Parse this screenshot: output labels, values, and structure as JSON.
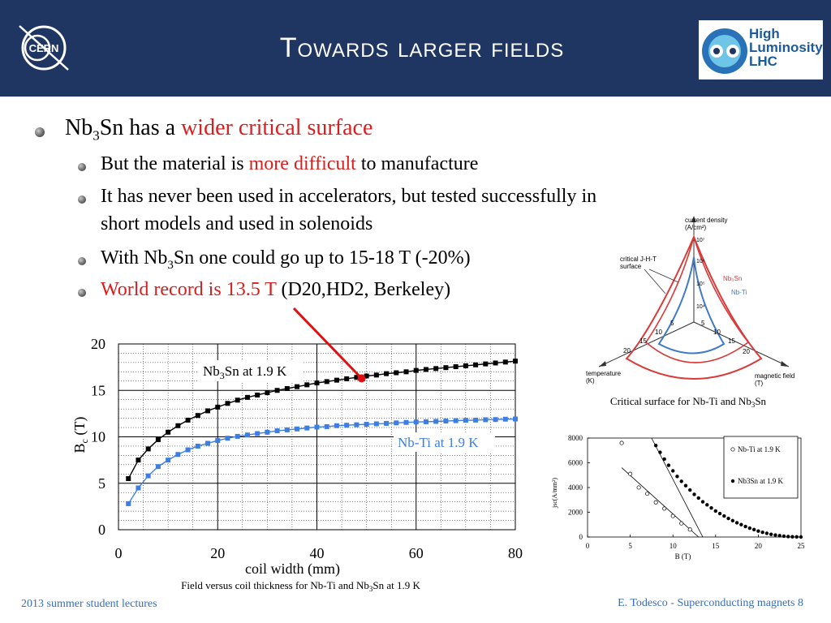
{
  "header": {
    "title": "Towards larger fields",
    "left_logo_text": "CERN",
    "right_logo_lines": [
      "High",
      "Luminosity",
      "LHC"
    ]
  },
  "colors": {
    "header_bg": "#1f3663",
    "accent_red": "#d81e1e",
    "footer_blue": "#3a6db5",
    "nbti_blue": "#3d7ee0",
    "nb3sn_black": "#000000",
    "surface_red": "#d93a3a",
    "surface_blue": "#3f79c8"
  },
  "bullets": {
    "b1": {
      "pre": "Nb",
      "sub": "3",
      "mid": "Sn has a ",
      "red": "wider critical surface"
    },
    "b2": {
      "pre": "But the material is ",
      "red": "more difficult",
      "post": " to manufacture"
    },
    "b3": {
      "line1": "It has never been used in accelerators, but tested successfully in",
      "line2": "short models and used in solenoids"
    },
    "b4": {
      "pre": "With Nb",
      "sub": "3",
      "post": "Sn one could go up to 15-18 T (-20%)"
    },
    "b5": {
      "red": "World record is 13.5 T",
      "post": " (D20,HD2, Berkeley)"
    }
  },
  "surface_figure": {
    "axis_current": "current density",
    "axis_current_unit": "(A/cm²)",
    "axis_temp": "temperature",
    "axis_temp_unit": "(K)",
    "axis_field": "magnetic field",
    "axis_field_unit": "(T)",
    "critical_label_1": "critical J-H-T",
    "critical_label_2": "surface",
    "legend_nb3sn": "Nb₃Sn",
    "legend_nbti": "Nb-Ti",
    "current_ticks": [
      "10⁴",
      "10⁵",
      "10⁶",
      "10⁷"
    ],
    "temp_ticks": [
      "5",
      "10",
      "15",
      "20"
    ],
    "field_ticks": [
      "5",
      "10",
      "15",
      "20"
    ],
    "caption_pre": "Critical surface for Nb-Ti and Nb",
    "caption_sub": "3",
    "caption_post": "Sn"
  },
  "chart_data": [
    {
      "type": "line",
      "title": "",
      "xlabel": "coil width (mm)",
      "ylabel": "Bc (T)",
      "xlim": [
        0,
        80
      ],
      "ylim": [
        0,
        20
      ],
      "xticks": [
        0,
        20,
        40,
        60,
        80
      ],
      "yticks": [
        0,
        5,
        10,
        15,
        20
      ],
      "grid": true,
      "series": [
        {
          "name": "Nb3Sn at 1.9 K",
          "color": "#000000",
          "x": [
            2,
            4,
            6,
            8,
            10,
            12,
            14,
            16,
            18,
            20,
            22,
            24,
            26,
            28,
            30,
            32,
            34,
            36,
            38,
            40,
            42,
            44,
            46,
            48,
            50,
            52,
            54,
            56,
            58,
            60,
            62,
            64,
            66,
            68,
            70,
            72,
            74,
            76,
            78,
            80
          ],
          "y": [
            5.5,
            7.5,
            8.7,
            9.7,
            10.5,
            11.2,
            11.8,
            12.3,
            12.8,
            13.2,
            13.6,
            13.95,
            14.25,
            14.5,
            14.75,
            15.0,
            15.2,
            15.4,
            15.6,
            15.8,
            15.95,
            16.1,
            16.25,
            16.4,
            16.55,
            16.65,
            16.8,
            16.9,
            17.0,
            17.15,
            17.25,
            17.35,
            17.45,
            17.55,
            17.65,
            17.75,
            17.85,
            17.95,
            18.05,
            18.15
          ]
        },
        {
          "name": "Nb-Ti at 1.9 K",
          "color": "#3d7ee0",
          "x": [
            2,
            4,
            6,
            8,
            10,
            12,
            14,
            16,
            18,
            20,
            22,
            24,
            26,
            28,
            30,
            32,
            34,
            36,
            38,
            40,
            42,
            44,
            46,
            48,
            50,
            52,
            54,
            56,
            58,
            60,
            62,
            64,
            66,
            68,
            70,
            72,
            74,
            76,
            78,
            80
          ],
          "y": [
            2.8,
            4.5,
            5.8,
            6.8,
            7.5,
            8.1,
            8.6,
            9.0,
            9.3,
            9.6,
            9.85,
            10.05,
            10.2,
            10.35,
            10.5,
            10.65,
            10.75,
            10.85,
            10.95,
            11.05,
            11.1,
            11.2,
            11.25,
            11.3,
            11.35,
            11.4,
            11.45,
            11.5,
            11.55,
            11.6,
            11.62,
            11.66,
            11.7,
            11.74,
            11.78,
            11.8,
            11.84,
            11.86,
            11.9,
            11.92
          ]
        }
      ],
      "annotation": {
        "label": "World record 13.5 T",
        "point_x": 49,
        "point_y": 16.3
      },
      "caption_pre": "Field versus coil thickness for Nb-Ti and Nb",
      "caption_sub": "3",
      "caption_post": "Sn at 1.9 K",
      "label_nb3sn_pre": "Nb",
      "label_nb3sn_sub": "3",
      "label_nb3sn_post": "Sn at 1.9 K",
      "label_nbti": "Nb-Ti at 1.9 K",
      "ylabel_main": "B",
      "ylabel_sub": "c",
      "ylabel_unit": " (T)"
    },
    {
      "type": "scatter",
      "title": "",
      "xlabel": "B (T)",
      "ylabel": "jsc(A/mm²)",
      "xlim": [
        0,
        25
      ],
      "ylim": [
        0,
        8000
      ],
      "xticks": [
        0,
        5,
        10,
        15,
        20,
        25
      ],
      "yticks": [
        0,
        2000,
        4000,
        6000,
        8000
      ],
      "legend": "top-right",
      "series": [
        {
          "name": "Nb-Ti at 1.9 K",
          "marker": "open-circle",
          "x": [
            4,
            5,
            6,
            7,
            8,
            9,
            10,
            11,
            12
          ],
          "y": [
            7600,
            5100,
            4000,
            3500,
            2800,
            2300,
            1700,
            1100,
            600
          ]
        },
        {
          "name": "Nb3Sn at 1.9 K",
          "marker": "filled-circle",
          "x": [
            8,
            8.5,
            9,
            9.5,
            10,
            10.5,
            11,
            11.5,
            12,
            12.5,
            13,
            13.5,
            14,
            14.5,
            15,
            15.5,
            16,
            16.5,
            17,
            17.5,
            18,
            18.5,
            19,
            19.5,
            20,
            20.5,
            21,
            21.5,
            22,
            22.5,
            23,
            23.5,
            24,
            24.5,
            25
          ],
          "y": [
            7400,
            6850,
            6300,
            5800,
            5350,
            4900,
            4500,
            4150,
            3800,
            3450,
            3150,
            2850,
            2600,
            2350,
            2100,
            1900,
            1700,
            1500,
            1320,
            1150,
            1000,
            850,
            720,
            600,
            480,
            380,
            300,
            220,
            160,
            110,
            70,
            40,
            20,
            10,
            0
          ]
        }
      ],
      "fits": [
        {
          "series": "Nb-Ti at 1.9 K",
          "x": [
            4,
            13
          ],
          "y": [
            5600,
            0
          ]
        },
        {
          "series": "Nb3Sn at 1.9 K",
          "x": [
            7.5,
            13.5
          ],
          "y": [
            8000,
            0
          ]
        }
      ]
    }
  ],
  "footer": {
    "left": "2013 summer student lectures",
    "right": "E. Todesco - Superconducting magnets 8"
  }
}
